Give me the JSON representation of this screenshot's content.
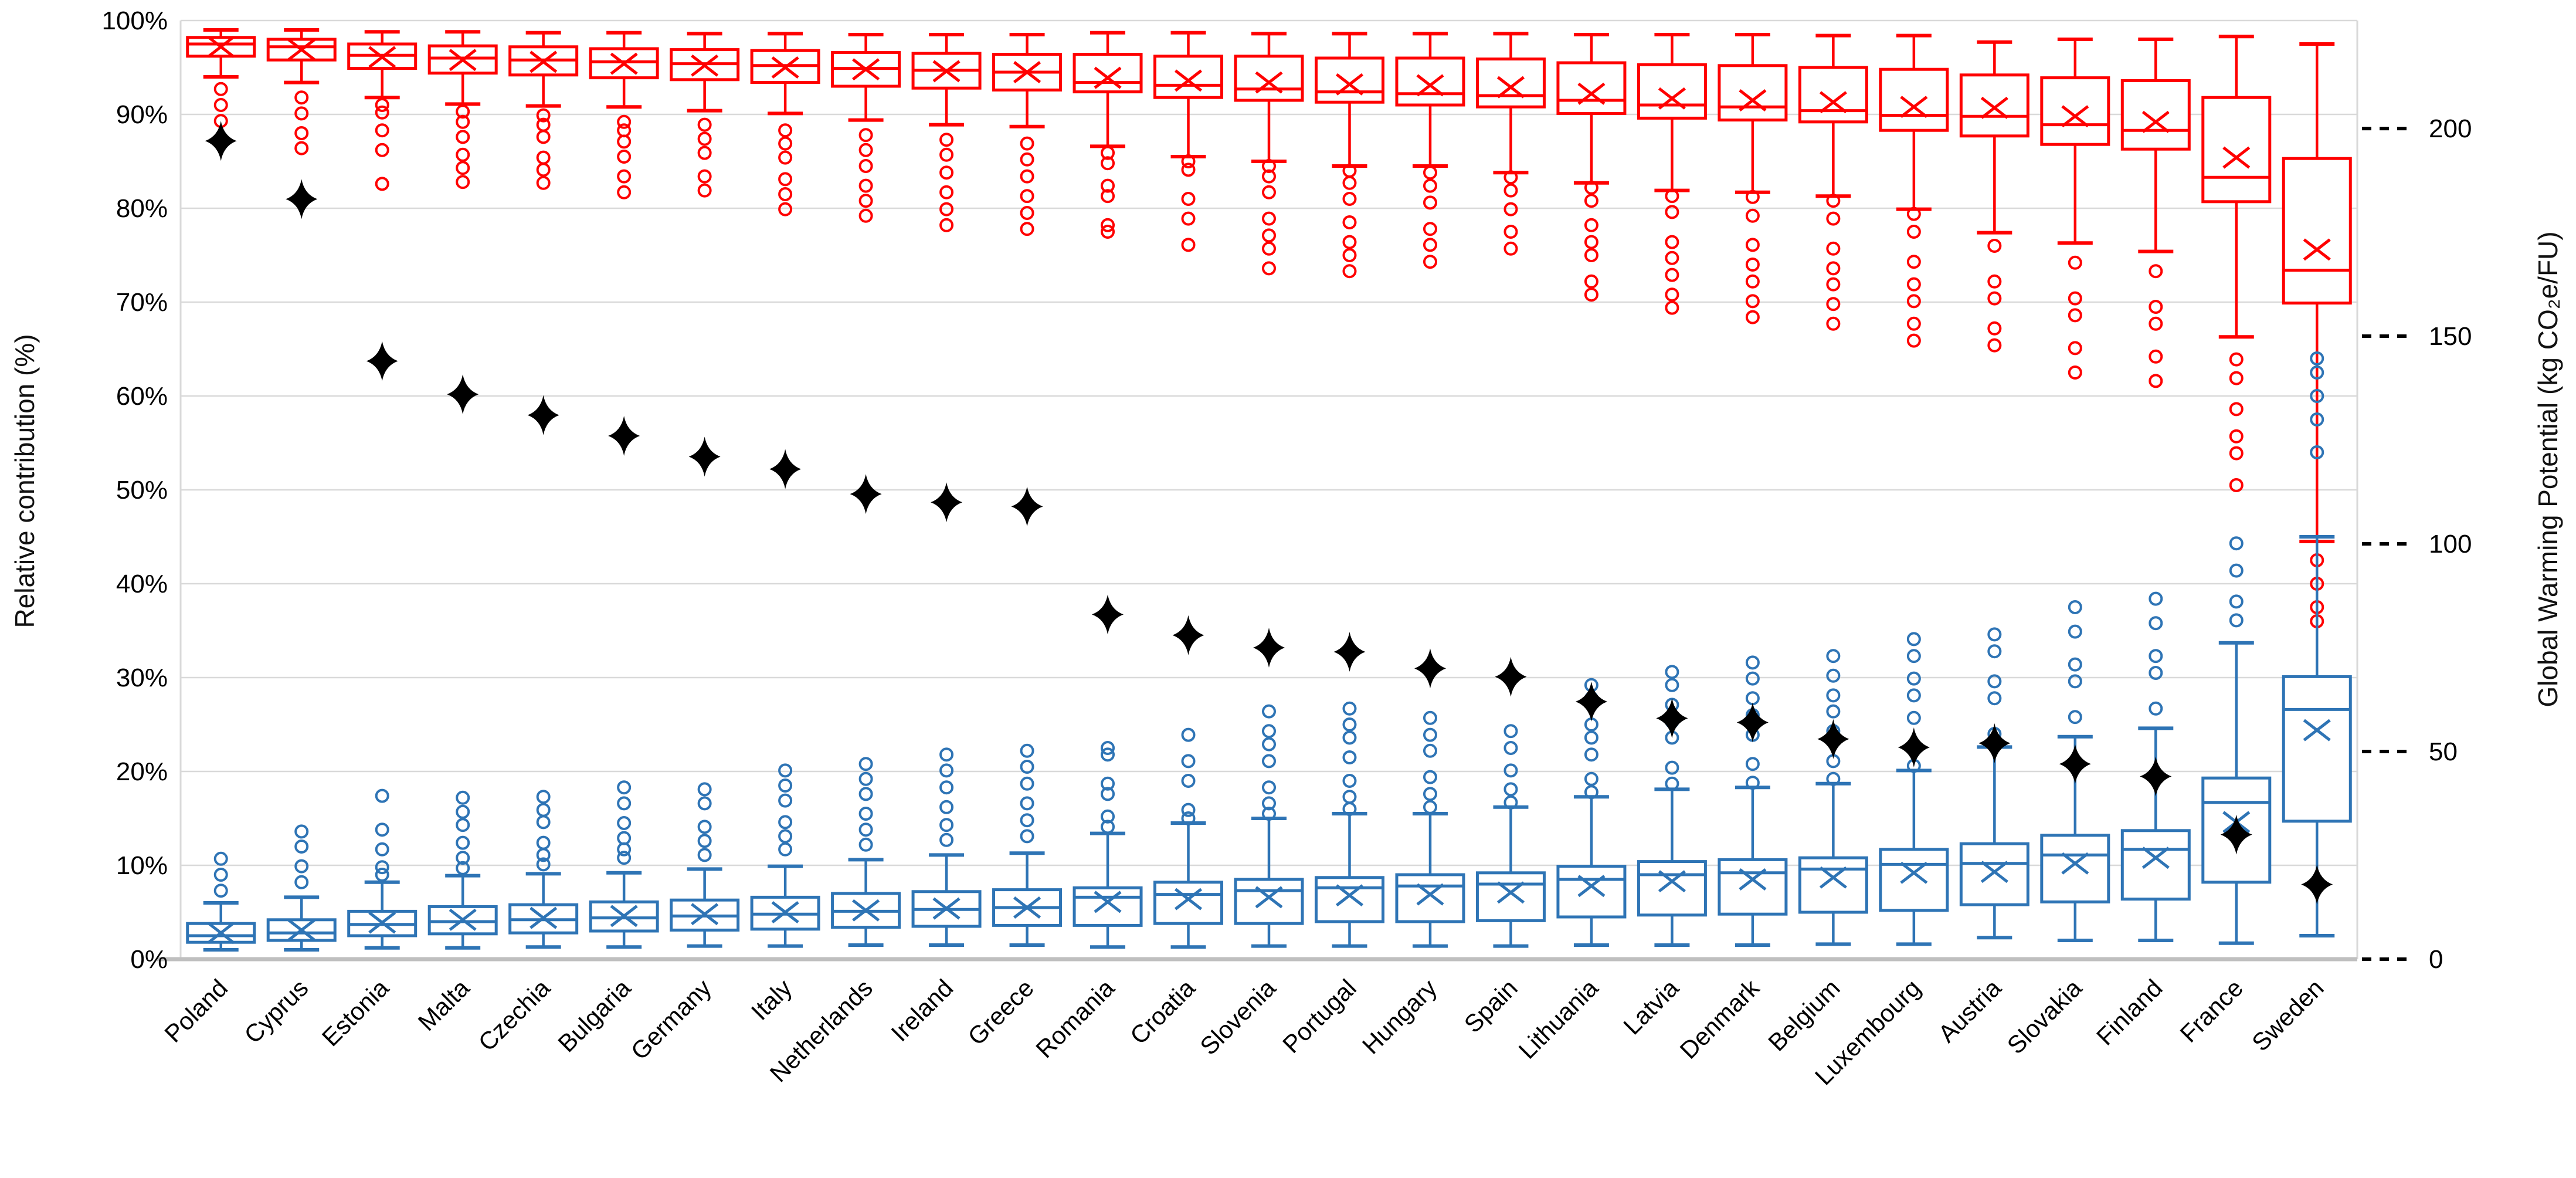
{
  "chart_data": {
    "type": "boxplot",
    "title": "",
    "left_axis": {
      "label": "Relative contribution (%)",
      "ticks": [
        0,
        10,
        20,
        30,
        40,
        50,
        60,
        70,
        80,
        90,
        100
      ],
      "unit": "%",
      "ylim": [
        0,
        100
      ]
    },
    "right_axis": {
      "label": "Global Warming Potential (kg CO₂e/FU)",
      "ticks": [
        0,
        50,
        100,
        150,
        200
      ],
      "max": 226
    },
    "legend": "none",
    "grid": "horizontal",
    "colors": {
      "red_series": "#FF0000",
      "blue_series": "#2E74B5",
      "diamond": "#000000",
      "gridline": "#D9D9D9",
      "axis_line": "#BFBFBF",
      "text": "#000000"
    },
    "categories": [
      "Poland",
      "Cyprus",
      "Estonia",
      "Malta",
      "Czechia",
      "Bulgaria",
      "Germany",
      "Italy",
      "Netherlands",
      "Ireland",
      "Greece",
      "Romania",
      "Croatia",
      "Slovenia",
      "Portugal",
      "Hungary",
      "Spain",
      "Lithuania",
      "Latvia",
      "Denmark",
      "Belgium",
      "Luxembourg",
      "Austria",
      "Slovakia",
      "Finland",
      "France",
      "Sweden"
    ],
    "series": [
      {
        "name": "red-relative-contribution-boxes",
        "type": "box",
        "color": "#FF0000",
        "outlier_side": "below",
        "boxes": [
          {
            "lo": 94.0,
            "q1": 96.2,
            "med": 97.5,
            "mean": 97.2,
            "q3": 98.2,
            "hi": 99.0,
            "out": [
              92.7,
              91.0,
              89.3
            ]
          },
          {
            "lo": 93.4,
            "q1": 95.8,
            "med": 97.2,
            "mean": 96.9,
            "q3": 98.0,
            "hi": 99.0,
            "out": [
              91.8,
              90.1,
              88.0,
              86.4
            ]
          },
          {
            "lo": 91.8,
            "q1": 94.9,
            "med": 96.3,
            "mean": 96.1,
            "q3": 97.5,
            "hi": 98.8,
            "out": [
              91.0,
              90.2,
              88.3,
              86.2,
              82.6
            ]
          },
          {
            "lo": 91.1,
            "q1": 94.4,
            "med": 96.0,
            "mean": 95.8,
            "q3": 97.3,
            "hi": 98.8,
            "out": [
              90.3,
              89.2,
              87.6,
              85.7,
              84.3,
              82.8
            ]
          },
          {
            "lo": 90.9,
            "q1": 94.2,
            "med": 95.8,
            "mean": 95.6,
            "q3": 97.2,
            "hi": 98.7,
            "out": [
              89.9,
              88.9,
              87.6,
              85.4,
              84.1,
              82.7
            ]
          },
          {
            "lo": 90.8,
            "q1": 93.9,
            "med": 95.6,
            "mean": 95.4,
            "q3": 97.0,
            "hi": 98.7,
            "out": [
              89.2,
              88.3,
              87.1,
              85.5,
              83.4,
              81.7
            ]
          },
          {
            "lo": 90.4,
            "q1": 93.7,
            "med": 95.4,
            "mean": 95.2,
            "q3": 96.9,
            "hi": 98.6,
            "out": [
              88.9,
              87.4,
              85.9,
              83.4,
              81.9
            ]
          },
          {
            "lo": 90.1,
            "q1": 93.4,
            "med": 95.2,
            "mean": 95.0,
            "q3": 96.8,
            "hi": 98.6,
            "out": [
              88.3,
              86.9,
              85.4,
              83.1,
              81.5,
              79.9
            ]
          },
          {
            "lo": 89.4,
            "q1": 93.0,
            "med": 94.9,
            "mean": 94.8,
            "q3": 96.6,
            "hi": 98.5,
            "out": [
              87.8,
              86.2,
              84.5,
              82.4,
              80.8,
              79.2
            ]
          },
          {
            "lo": 88.9,
            "q1": 92.8,
            "med": 94.7,
            "mean": 94.6,
            "q3": 96.5,
            "hi": 98.5,
            "out": [
              87.3,
              85.7,
              83.8,
              81.7,
              79.9,
              78.2
            ]
          },
          {
            "lo": 88.7,
            "q1": 92.6,
            "med": 94.5,
            "mean": 94.5,
            "q3": 96.4,
            "hi": 98.5,
            "out": [
              86.9,
              85.2,
              83.4,
              81.3,
              79.5,
              77.8
            ]
          },
          {
            "lo": 86.6,
            "q1": 92.4,
            "med": 93.4,
            "mean": 93.9,
            "q3": 96.4,
            "hi": 98.7,
            "out": [
              85.9,
              84.8,
              82.4,
              81.3,
              78.2,
              77.5
            ]
          },
          {
            "lo": 85.5,
            "q1": 91.8,
            "med": 93.1,
            "mean": 93.6,
            "q3": 96.2,
            "hi": 98.7,
            "out": [
              85.0,
              84.1,
              81.0,
              78.9,
              76.1
            ]
          },
          {
            "lo": 85.0,
            "q1": 91.5,
            "med": 92.7,
            "mean": 93.4,
            "q3": 96.2,
            "hi": 98.6,
            "out": [
              84.5,
              83.4,
              81.7,
              78.9,
              77.1,
              75.7,
              73.6
            ]
          },
          {
            "lo": 84.5,
            "q1": 91.3,
            "med": 92.4,
            "mean": 93.2,
            "q3": 96.0,
            "hi": 98.6,
            "out": [
              84.0,
              82.7,
              81.0,
              78.5,
              76.4,
              75.0,
              73.3
            ]
          },
          {
            "lo": 84.5,
            "q1": 91.0,
            "med": 92.2,
            "mean": 93.1,
            "q3": 96.0,
            "hi": 98.6,
            "out": [
              83.8,
              82.4,
              80.6,
              77.8,
              76.1,
              74.3
            ]
          },
          {
            "lo": 83.8,
            "q1": 90.8,
            "med": 92.0,
            "mean": 92.9,
            "q3": 95.9,
            "hi": 98.6,
            "out": [
              83.3,
              81.9,
              79.9,
              77.5,
              75.7
            ]
          },
          {
            "lo": 82.7,
            "q1": 90.1,
            "med": 91.5,
            "mean": 92.2,
            "q3": 95.5,
            "hi": 98.5,
            "out": [
              82.2,
              80.8,
              78.2,
              76.4,
              75.0,
              72.2,
              70.8
            ]
          },
          {
            "lo": 81.9,
            "q1": 89.6,
            "med": 91.0,
            "mean": 91.7,
            "q3": 95.3,
            "hi": 98.5,
            "out": [
              81.3,
              79.6,
              76.4,
              74.7,
              72.9,
              70.8,
              69.4
            ]
          },
          {
            "lo": 81.7,
            "q1": 89.4,
            "med": 90.8,
            "mean": 91.5,
            "q3": 95.2,
            "hi": 98.5,
            "out": [
              81.2,
              79.2,
              76.1,
              74.0,
              72.2,
              70.1,
              68.4
            ]
          },
          {
            "lo": 81.3,
            "q1": 89.2,
            "med": 90.4,
            "mean": 91.3,
            "q3": 95.0,
            "hi": 98.4,
            "out": [
              80.8,
              78.9,
              75.7,
              73.6,
              71.9,
              69.8,
              67.7
            ]
          },
          {
            "lo": 79.9,
            "q1": 88.3,
            "med": 89.9,
            "mean": 90.8,
            "q3": 94.8,
            "hi": 98.4,
            "out": [
              79.4,
              77.5,
              74.3,
              71.9,
              70.1,
              67.7,
              65.9
            ]
          },
          {
            "lo": 77.4,
            "q1": 87.7,
            "med": 89.8,
            "mean": 90.7,
            "q3": 94.2,
            "hi": 97.7,
            "out": [
              76.0,
              72.2,
              70.4,
              67.2,
              65.4
            ]
          },
          {
            "lo": 76.3,
            "q1": 86.8,
            "med": 88.9,
            "mean": 89.8,
            "q3": 93.9,
            "hi": 98.0,
            "out": [
              74.2,
              70.4,
              68.6,
              65.1,
              62.5
            ]
          },
          {
            "lo": 75.4,
            "q1": 86.3,
            "med": 88.3,
            "mean": 89.2,
            "q3": 93.6,
            "hi": 98.0,
            "out": [
              73.3,
              69.5,
              67.7,
              64.2,
              61.6
            ]
          },
          {
            "lo": 66.3,
            "q1": 80.7,
            "med": 83.3,
            "mean": 85.4,
            "q3": 91.8,
            "hi": 98.3,
            "out": [
              63.9,
              61.9,
              58.6,
              55.7,
              53.9,
              50.5
            ]
          },
          {
            "lo": 44.5,
            "q1": 69.9,
            "med": 73.4,
            "mean": 75.6,
            "q3": 85.3,
            "hi": 97.5,
            "out": [
              42.5,
              40.0,
              37.5,
              36.0
            ]
          }
        ]
      },
      {
        "name": "blue-relative-contribution-boxes",
        "type": "box",
        "color": "#2E74B5",
        "outlier_side": "above",
        "boxes": [
          {
            "lo": 1.0,
            "q1": 1.8,
            "med": 2.5,
            "mean": 2.8,
            "q3": 3.8,
            "hi": 6.0,
            "out": [
              7.3,
              9.0,
              10.7
            ]
          },
          {
            "lo": 1.0,
            "q1": 2.0,
            "med": 2.8,
            "mean": 3.1,
            "q3": 4.2,
            "hi": 6.6,
            "out": [
              8.2,
              9.9,
              12.0,
              13.6
            ]
          },
          {
            "lo": 1.2,
            "q1": 2.5,
            "med": 3.7,
            "mean": 3.9,
            "q3": 5.1,
            "hi": 8.2,
            "out": [
              9.0,
              9.8,
              11.7,
              13.8,
              17.4
            ]
          },
          {
            "lo": 1.2,
            "q1": 2.7,
            "med": 4.0,
            "mean": 4.2,
            "q3": 5.6,
            "hi": 8.9,
            "out": [
              9.7,
              10.8,
              12.4,
              14.3,
              15.7,
              17.2
            ]
          },
          {
            "lo": 1.3,
            "q1": 2.8,
            "med": 4.2,
            "mean": 4.4,
            "q3": 5.8,
            "hi": 9.1,
            "out": [
              10.1,
              11.1,
              12.4,
              14.6,
              15.9,
              17.3
            ]
          },
          {
            "lo": 1.3,
            "q1": 3.0,
            "med": 4.4,
            "mean": 4.6,
            "q3": 6.1,
            "hi": 9.2,
            "out": [
              10.8,
              11.7,
              12.9,
              14.5,
              16.6,
              18.3
            ]
          },
          {
            "lo": 1.4,
            "q1": 3.1,
            "med": 4.6,
            "mean": 4.8,
            "q3": 6.3,
            "hi": 9.6,
            "out": [
              11.1,
              12.6,
              14.1,
              16.6,
              18.1
            ]
          },
          {
            "lo": 1.4,
            "q1": 3.2,
            "med": 4.8,
            "mean": 5.0,
            "q3": 6.6,
            "hi": 9.9,
            "out": [
              11.7,
              13.1,
              14.6,
              16.9,
              18.5,
              20.1
            ]
          },
          {
            "lo": 1.5,
            "q1": 3.4,
            "med": 5.1,
            "mean": 5.2,
            "q3": 7.0,
            "hi": 10.6,
            "out": [
              12.2,
              13.8,
              15.5,
              17.6,
              19.2,
              20.8
            ]
          },
          {
            "lo": 1.5,
            "q1": 3.5,
            "med": 5.3,
            "mean": 5.4,
            "q3": 7.2,
            "hi": 11.1,
            "out": [
              12.7,
              14.3,
              16.2,
              18.3,
              20.1,
              21.8
            ]
          },
          {
            "lo": 1.5,
            "q1": 3.6,
            "med": 5.5,
            "mean": 5.5,
            "q3": 7.4,
            "hi": 11.3,
            "out": [
              13.1,
              14.8,
              16.6,
              18.7,
              20.5,
              22.2
            ]
          },
          {
            "lo": 1.3,
            "q1": 3.6,
            "med": 6.6,
            "mean": 6.1,
            "q3": 7.6,
            "hi": 13.4,
            "out": [
              14.1,
              15.2,
              17.6,
              18.7,
              21.8,
              22.5
            ]
          },
          {
            "lo": 1.3,
            "q1": 3.8,
            "med": 6.9,
            "mean": 6.4,
            "q3": 8.2,
            "hi": 14.5,
            "out": [
              15.0,
              15.9,
              19.0,
              21.1,
              23.9
            ]
          },
          {
            "lo": 1.4,
            "q1": 3.8,
            "med": 7.3,
            "mean": 6.6,
            "q3": 8.5,
            "hi": 15.0,
            "out": [
              15.5,
              16.6,
              18.3,
              21.1,
              22.9,
              24.3,
              26.4
            ]
          },
          {
            "lo": 1.4,
            "q1": 4.0,
            "med": 7.6,
            "mean": 6.8,
            "q3": 8.7,
            "hi": 15.5,
            "out": [
              16.0,
              17.3,
              19.0,
              21.5,
              23.6,
              25.0,
              26.7
            ]
          },
          {
            "lo": 1.4,
            "q1": 4.0,
            "med": 7.8,
            "mean": 6.9,
            "q3": 9.0,
            "hi": 15.5,
            "out": [
              16.2,
              17.6,
              19.4,
              22.2,
              23.9,
              25.7
            ]
          },
          {
            "lo": 1.4,
            "q1": 4.1,
            "med": 8.0,
            "mean": 7.1,
            "q3": 9.2,
            "hi": 16.2,
            "out": [
              16.7,
              18.1,
              20.1,
              22.5,
              24.3
            ]
          },
          {
            "lo": 1.5,
            "q1": 4.5,
            "med": 8.5,
            "mean": 7.8,
            "q3": 9.9,
            "hi": 17.3,
            "out": [
              17.8,
              19.2,
              21.8,
              23.6,
              25.0,
              27.8,
              29.2
            ]
          },
          {
            "lo": 1.5,
            "q1": 4.7,
            "med": 9.0,
            "mean": 8.3,
            "q3": 10.4,
            "hi": 18.1,
            "out": [
              18.7,
              20.4,
              23.6,
              25.3,
              27.1,
              29.2,
              30.6
            ]
          },
          {
            "lo": 1.5,
            "q1": 4.8,
            "med": 9.2,
            "mean": 8.5,
            "q3": 10.6,
            "hi": 18.3,
            "out": [
              18.8,
              20.8,
              23.9,
              26.0,
              27.8,
              29.9,
              31.6
            ]
          },
          {
            "lo": 1.6,
            "q1": 5.0,
            "med": 9.6,
            "mean": 8.7,
            "q3": 10.8,
            "hi": 18.7,
            "out": [
              19.2,
              21.1,
              24.3,
              26.4,
              28.1,
              30.2,
              32.3
            ]
          },
          {
            "lo": 1.6,
            "q1": 5.2,
            "med": 10.1,
            "mean": 9.2,
            "q3": 11.7,
            "hi": 20.1,
            "out": [
              20.6,
              22.5,
              25.7,
              28.1,
              29.9,
              32.3,
              34.1
            ]
          },
          {
            "lo": 2.3,
            "q1": 5.8,
            "med": 10.2,
            "mean": 9.3,
            "q3": 12.3,
            "hi": 22.6,
            "out": [
              24.0,
              27.8,
              29.6,
              32.8,
              34.6
            ]
          },
          {
            "lo": 2.0,
            "q1": 6.1,
            "med": 11.1,
            "mean": 10.2,
            "q3": 13.2,
            "hi": 23.7,
            "out": [
              25.8,
              29.6,
              31.4,
              34.9,
              37.5
            ]
          },
          {
            "lo": 2.0,
            "q1": 6.4,
            "med": 11.7,
            "mean": 10.8,
            "q3": 13.7,
            "hi": 24.6,
            "out": [
              26.7,
              30.5,
              32.3,
              35.8,
              38.4
            ]
          },
          {
            "lo": 1.7,
            "q1": 8.2,
            "med": 16.7,
            "mean": 14.6,
            "q3": 19.3,
            "hi": 33.7,
            "out": [
              36.1,
              38.1,
              41.4,
              44.3
            ]
          },
          {
            "lo": 2.5,
            "q1": 14.7,
            "med": 26.6,
            "mean": 24.4,
            "q3": 30.1,
            "hi": 45.0,
            "out": [
              54.0,
              57.5,
              60.0,
              62.5,
              64.0
            ]
          }
        ]
      },
      {
        "name": "gwp-diamonds",
        "type": "scatter-diamond",
        "color": "#000000",
        "axis": "right",
        "values": [
          197,
          183,
          144,
          136,
          131,
          126,
          121,
          118,
          112,
          110,
          109,
          83,
          78,
          75,
          74,
          70,
          68,
          62,
          58,
          57,
          53,
          51,
          52,
          47,
          44,
          30,
          18
        ]
      }
    ]
  }
}
